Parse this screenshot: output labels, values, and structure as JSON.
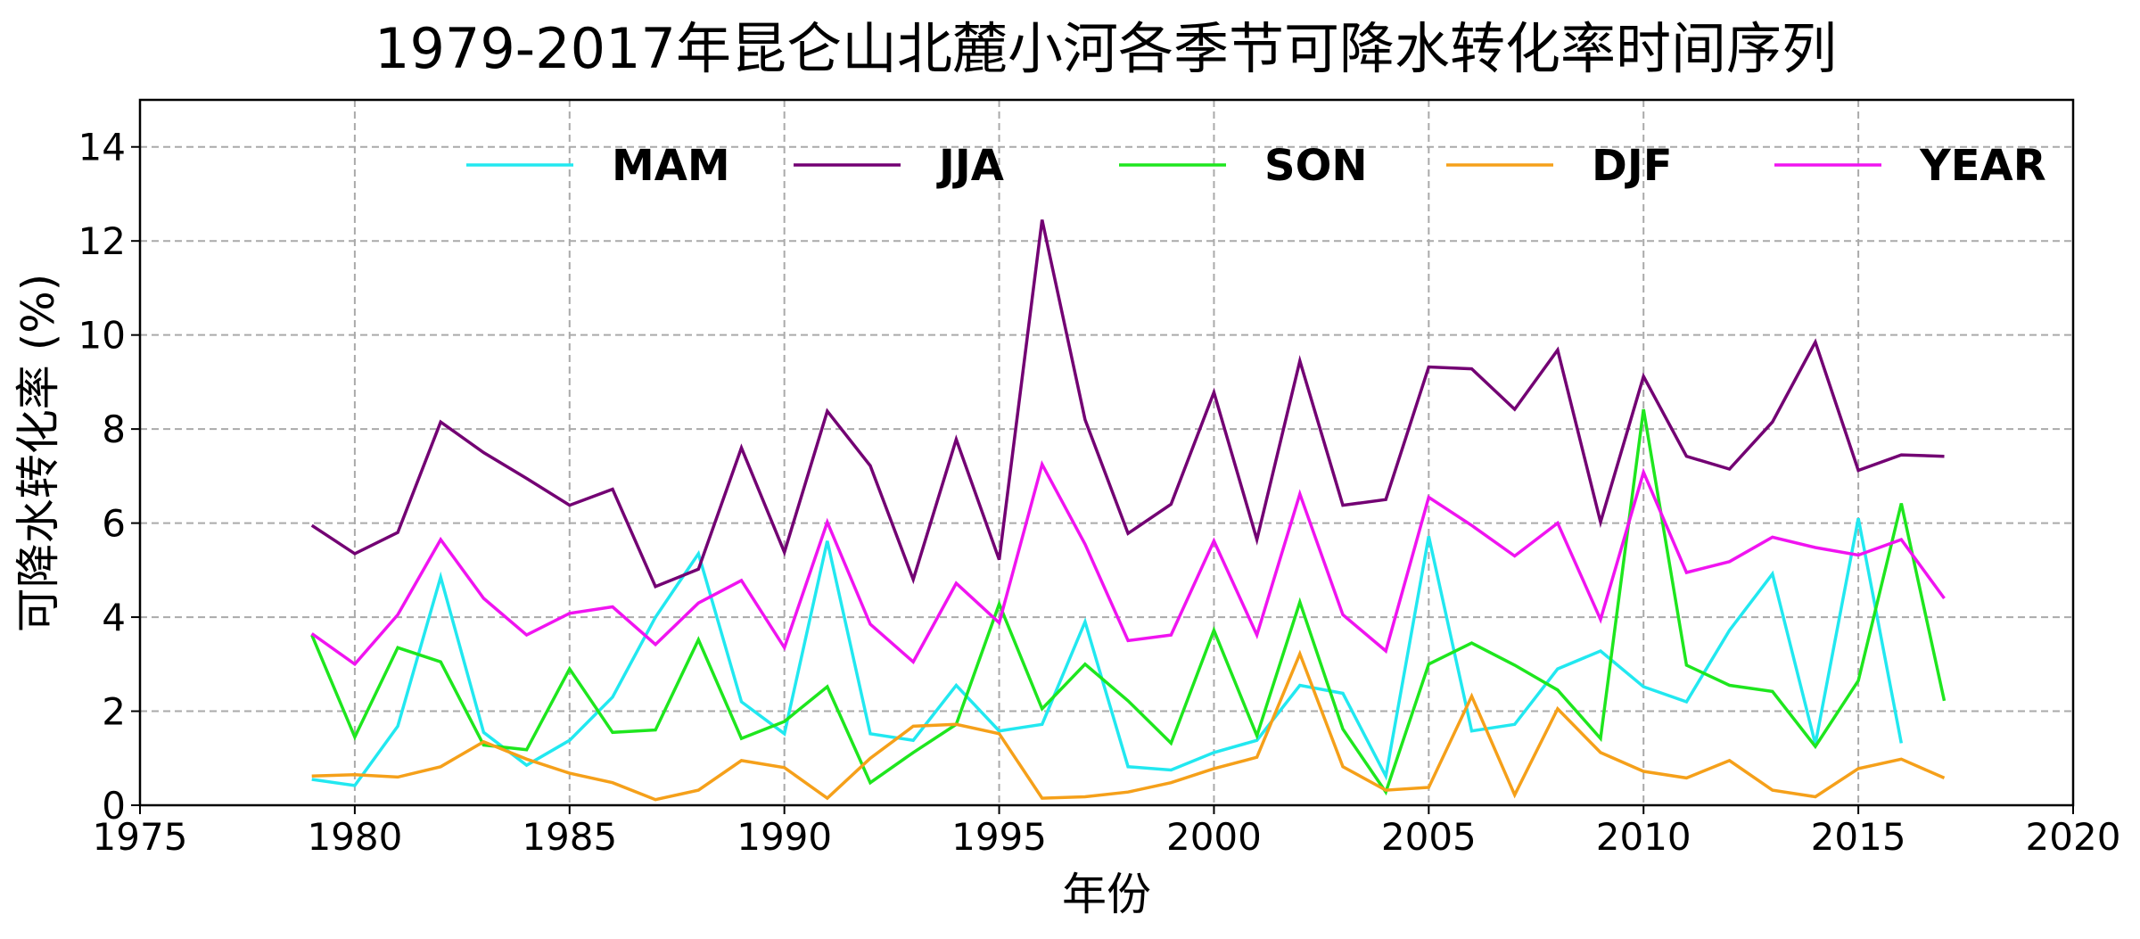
{
  "chart_data": {
    "type": "line",
    "title": "1979-2017年昆仑山北麓小河各季节可降水转化率时间序列",
    "xlabel": "年份",
    "ylabel": "可降水转化率 (%)",
    "xlim": [
      1975,
      2020
    ],
    "ylim": [
      0,
      15
    ],
    "xticks": [
      1975,
      1980,
      1985,
      1990,
      1995,
      2000,
      2005,
      2010,
      2015,
      2020
    ],
    "yticks": [
      0,
      2,
      4,
      6,
      8,
      10,
      12,
      14
    ],
    "grid": true,
    "legend_position": "top",
    "x": [
      1979,
      1980,
      1981,
      1982,
      1983,
      1984,
      1985,
      1986,
      1987,
      1988,
      1989,
      1990,
      1991,
      1992,
      1993,
      1994,
      1995,
      1996,
      1997,
      1998,
      1999,
      2000,
      2001,
      2002,
      2003,
      2004,
      2005,
      2006,
      2007,
      2008,
      2009,
      2010,
      2011,
      2012,
      2013,
      2014,
      2015,
      2016,
      2017
    ],
    "series": [
      {
        "name": "MAM",
        "color": "#22e8f0",
        "values": [
          0.55,
          0.42,
          1.68,
          4.85,
          1.55,
          0.85,
          1.38,
          2.3,
          4.0,
          5.35,
          2.2,
          1.52,
          5.62,
          1.52,
          1.38,
          2.55,
          1.58,
          1.72,
          3.9,
          0.82,
          0.75,
          1.12,
          1.38,
          2.55,
          2.38,
          0.62,
          5.72,
          1.58,
          1.72,
          2.9,
          3.28,
          2.52,
          2.2,
          3.72,
          4.92,
          1.3,
          6.1,
          1.32,
          null
        ]
      },
      {
        "name": "JJA",
        "color": "#730073",
        "values": [
          5.95,
          5.35,
          5.8,
          8.15,
          7.5,
          6.95,
          6.38,
          6.72,
          4.65,
          5.02,
          7.6,
          5.38,
          8.38,
          7.22,
          4.8,
          7.78,
          5.22,
          12.45,
          8.2,
          5.78,
          6.4,
          8.78,
          5.65,
          9.45,
          6.38,
          6.5,
          9.32,
          9.28,
          8.42,
          9.68,
          6.02,
          9.12,
          7.42,
          7.15,
          8.15,
          9.85,
          7.12,
          7.45,
          7.42
        ]
      },
      {
        "name": "SON",
        "color": "#1ee61e",
        "values": [
          3.62,
          1.45,
          3.35,
          3.05,
          1.28,
          1.18,
          2.9,
          1.55,
          1.6,
          3.52,
          1.42,
          1.78,
          2.52,
          0.48,
          1.12,
          1.72,
          4.28,
          2.05,
          3.0,
          2.22,
          1.32,
          3.72,
          1.48,
          4.32,
          1.62,
          0.28,
          3.0,
          3.45,
          2.98,
          2.45,
          1.42,
          8.42,
          2.98,
          2.55,
          2.42,
          1.25,
          2.65,
          6.42,
          2.22
        ]
      },
      {
        "name": "DJF",
        "color": "#f5a01a",
        "values": [
          0.62,
          0.65,
          0.6,
          0.82,
          1.35,
          0.98,
          0.68,
          0.48,
          0.12,
          0.32,
          0.95,
          0.8,
          0.15,
          1.0,
          1.68,
          1.72,
          1.52,
          0.15,
          0.18,
          0.28,
          0.48,
          0.78,
          1.02,
          3.22,
          0.82,
          0.32,
          0.38,
          2.32,
          0.22,
          2.05,
          1.12,
          0.72,
          0.58,
          0.95,
          0.32,
          0.18,
          0.78,
          0.98,
          0.58
        ]
      },
      {
        "name": "YEAR",
        "color": "#f014f0",
        "values": [
          3.65,
          3.0,
          4.05,
          5.65,
          4.4,
          3.62,
          4.08,
          4.22,
          3.42,
          4.3,
          4.78,
          3.35,
          6.02,
          3.85,
          3.05,
          4.72,
          3.88,
          7.25,
          5.55,
          3.5,
          3.62,
          5.62,
          3.62,
          6.62,
          4.05,
          3.28,
          6.55,
          5.95,
          5.3,
          6.0,
          3.95,
          7.08,
          4.95,
          5.18,
          5.7,
          5.48,
          5.32,
          5.65,
          4.4
        ]
      }
    ]
  }
}
